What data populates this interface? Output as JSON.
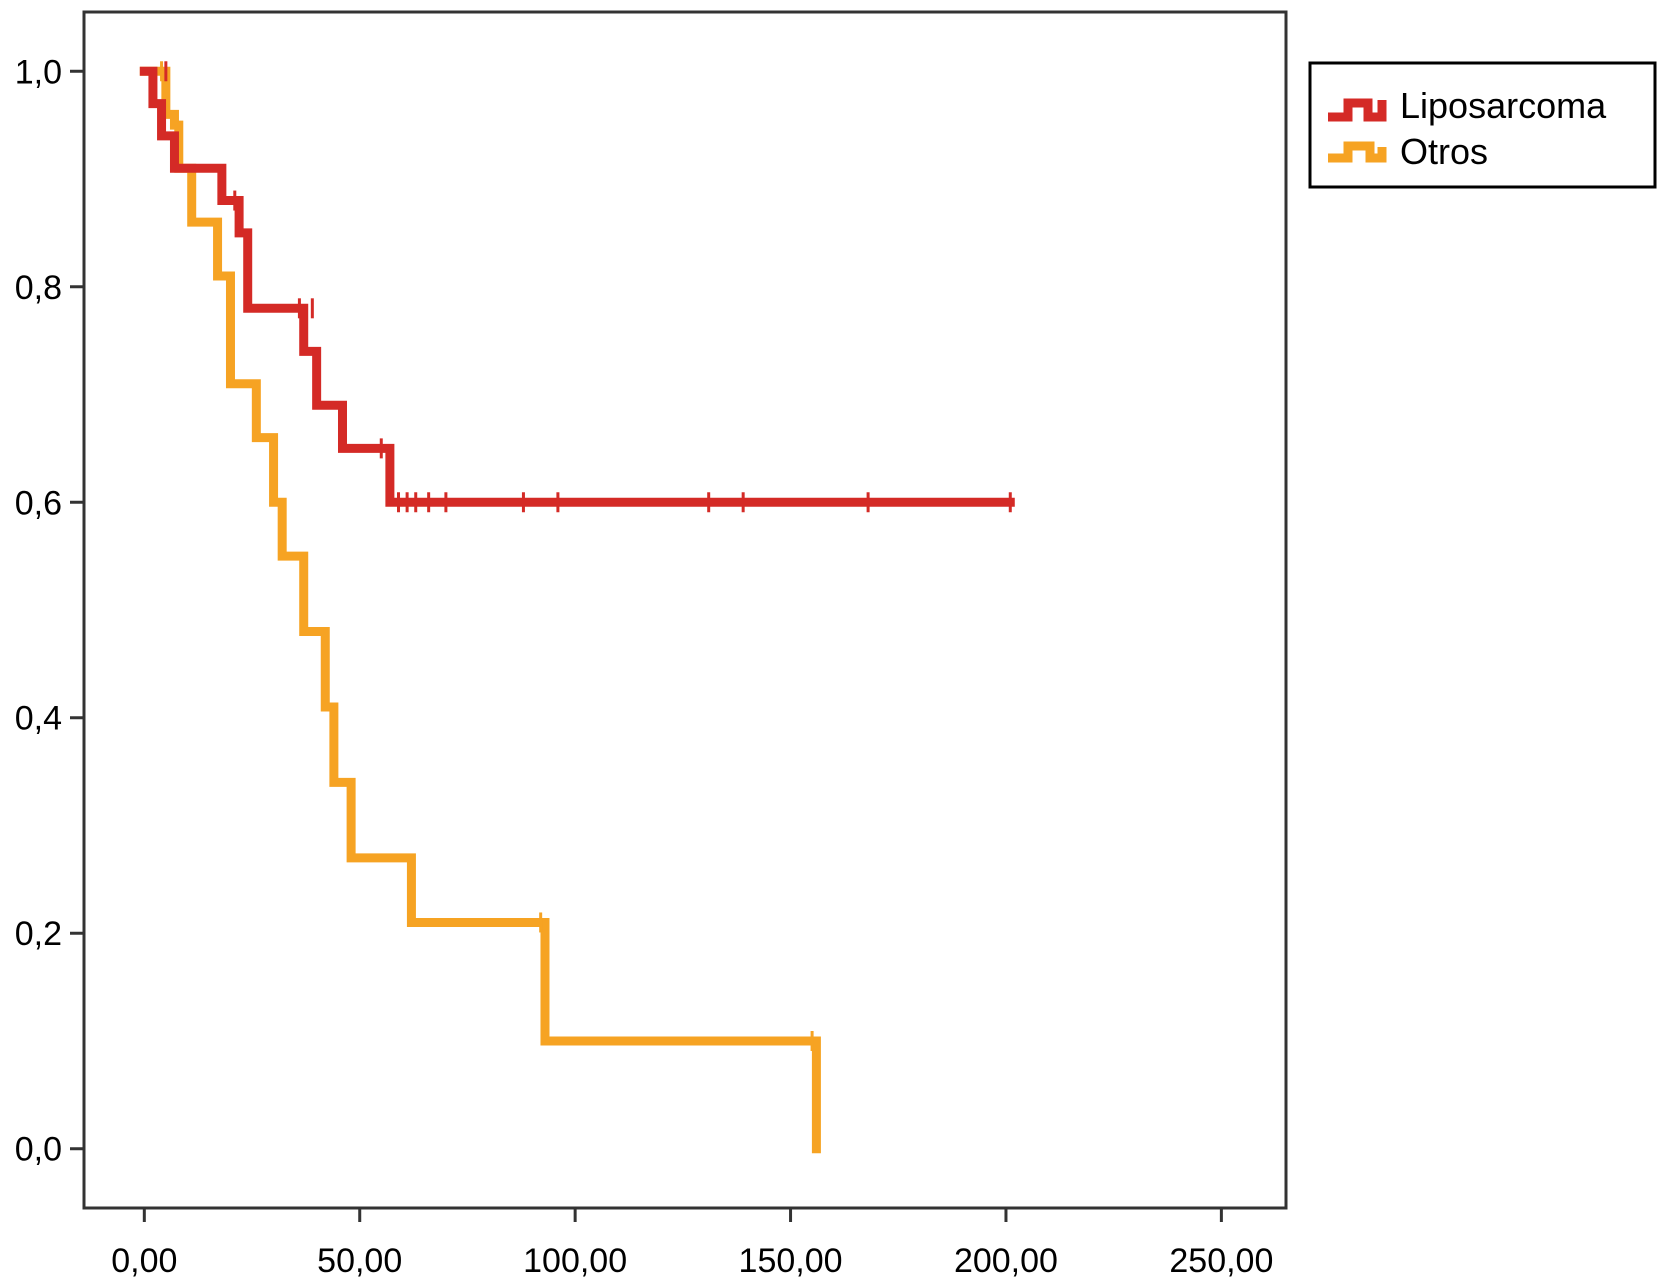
{
  "chart_data": {
    "type": "line",
    "subtype": "kaplan-meier-step",
    "title": "",
    "xlabel": "",
    "ylabel": "",
    "xlim": [
      -14,
      265
    ],
    "ylim": [
      -0.055,
      1.055
    ],
    "x_ticks": [
      0,
      50,
      100,
      150,
      200,
      250
    ],
    "x_tick_labels": [
      "0,00",
      "50,00",
      "100,00",
      "150,00",
      "200,00",
      "250,00"
    ],
    "y_ticks": [
      0,
      0.2,
      0.4,
      0.6,
      0.8,
      1.0
    ],
    "y_tick_labels": [
      "0,0",
      "0,2",
      "0,4",
      "0,6",
      "0,8",
      "1,0"
    ],
    "grid": false,
    "legend_position": "outside-top-right",
    "series": [
      {
        "name": "Liposarcoma",
        "color": "#d42a26",
        "steps": [
          [
            0,
            1.0
          ],
          [
            2,
            0.97
          ],
          [
            4,
            0.94
          ],
          [
            7,
            0.91
          ],
          [
            18,
            0.88
          ],
          [
            22,
            0.85
          ],
          [
            24,
            0.78
          ],
          [
            37,
            0.74
          ],
          [
            40,
            0.69
          ],
          [
            46,
            0.65
          ],
          [
            57,
            0.6
          ],
          [
            201,
            0.6
          ]
        ],
        "censored": [
          [
            5,
            1.0
          ],
          [
            21,
            0.88
          ],
          [
            36,
            0.78
          ],
          [
            39,
            0.78
          ],
          [
            55,
            0.65
          ],
          [
            59,
            0.6
          ],
          [
            61,
            0.6
          ],
          [
            63,
            0.6
          ],
          [
            66,
            0.6
          ],
          [
            70,
            0.6
          ],
          [
            88,
            0.6
          ],
          [
            96,
            0.6
          ],
          [
            131,
            0.6
          ],
          [
            139,
            0.6
          ],
          [
            168,
            0.6
          ],
          [
            201,
            0.6
          ]
        ]
      },
      {
        "name": "Otros",
        "color": "#f6a323",
        "steps": [
          [
            0,
            1.0
          ],
          [
            5,
            0.96
          ],
          [
            7,
            0.95
          ],
          [
            8,
            0.91
          ],
          [
            11,
            0.86
          ],
          [
            17,
            0.81
          ],
          [
            20,
            0.71
          ],
          [
            26,
            0.66
          ],
          [
            30,
            0.6
          ],
          [
            32,
            0.55
          ],
          [
            37,
            0.48
          ],
          [
            42,
            0.41
          ],
          [
            44,
            0.34
          ],
          [
            48,
            0.27
          ],
          [
            62,
            0.21
          ],
          [
            93,
            0.1
          ],
          [
            156,
            0.0
          ]
        ],
        "censored": [
          [
            4,
            1.0
          ],
          [
            92,
            0.21
          ],
          [
            155,
            0.1
          ]
        ]
      }
    ]
  }
}
